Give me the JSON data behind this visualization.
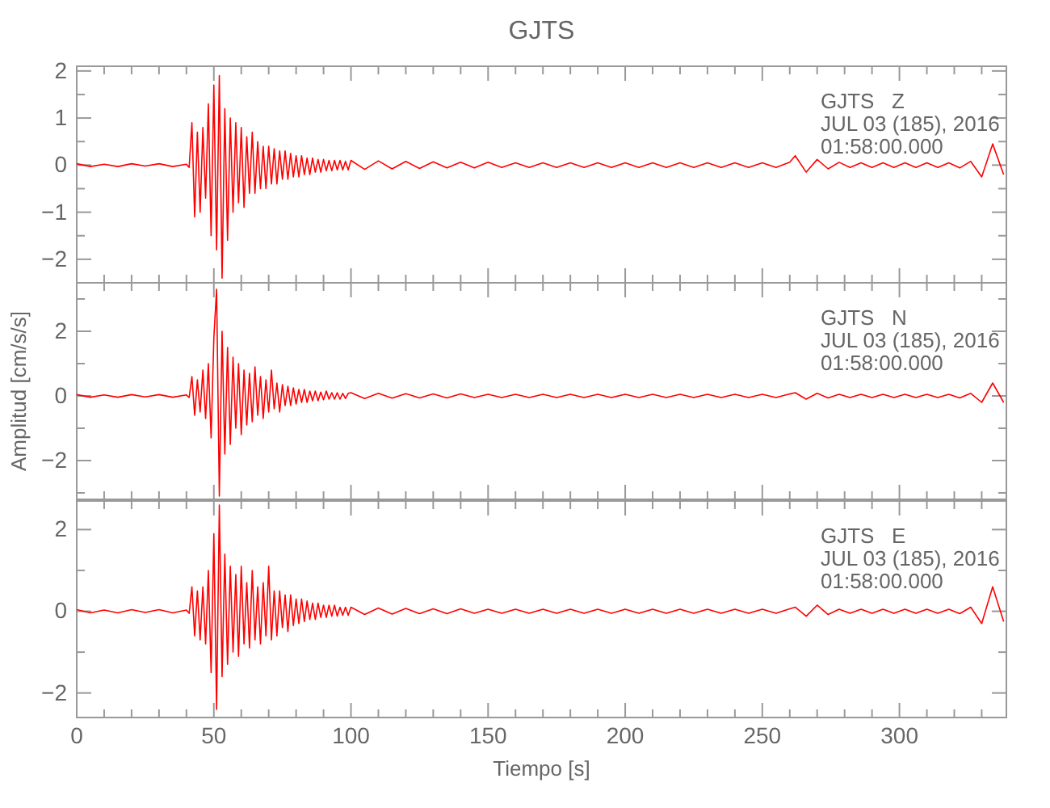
{
  "chart_data": [
    {
      "type": "line",
      "title": "GJTS",
      "x": [
        0,
        5,
        10,
        15,
        20,
        25,
        30,
        35,
        40,
        41,
        42,
        43,
        44,
        45,
        46,
        47,
        48,
        49,
        50,
        51,
        52,
        53,
        54,
        55,
        56,
        57,
        58,
        59,
        60,
        61,
        62,
        63,
        64,
        65,
        66,
        67,
        68,
        69,
        70,
        71,
        72,
        73,
        74,
        75,
        76,
        77,
        78,
        79,
        80,
        81,
        82,
        83,
        84,
        85,
        86,
        87,
        88,
        89,
        90,
        91,
        92,
        93,
        94,
        95,
        96,
        97,
        98,
        99,
        100,
        105,
        110,
        115,
        120,
        125,
        130,
        135,
        140,
        145,
        150,
        155,
        160,
        165,
        170,
        175,
        180,
        185,
        190,
        195,
        200,
        205,
        210,
        215,
        220,
        225,
        230,
        235,
        240,
        245,
        250,
        255,
        260,
        262,
        266,
        270,
        274,
        278,
        282,
        286,
        290,
        294,
        298,
        302,
        306,
        310,
        314,
        318,
        322,
        326,
        330,
        334,
        338
      ],
      "series": [
        {
          "color": "#ff0000",
          "values": [
            0.03,
            -0.03,
            0.02,
            -0.03,
            0.03,
            -0.02,
            0.03,
            -0.03,
            0.02,
            -0.05,
            0.9,
            -1.1,
            0.7,
            -1.0,
            0.8,
            -0.7,
            1.3,
            -1.5,
            1.7,
            -1.8,
            1.9,
            -2.4,
            1.2,
            -1.6,
            1.0,
            -1.0,
            0.9,
            -0.8,
            0.8,
            -0.9,
            0.6,
            -0.6,
            0.7,
            -0.6,
            0.5,
            -0.5,
            0.4,
            -0.5,
            0.4,
            -0.4,
            0.35,
            -0.4,
            0.3,
            -0.3,
            0.3,
            -0.3,
            0.25,
            -0.25,
            0.2,
            -0.25,
            0.2,
            -0.2,
            0.15,
            -0.2,
            0.15,
            -0.15,
            0.12,
            -0.15,
            0.12,
            -0.12,
            0.1,
            -0.12,
            0.1,
            -0.1,
            0.1,
            -0.1,
            0.08,
            -0.1,
            0.1,
            -0.09,
            0.09,
            -0.08,
            0.08,
            -0.07,
            0.07,
            -0.06,
            0.06,
            -0.06,
            0.06,
            -0.05,
            0.05,
            -0.05,
            0.05,
            -0.05,
            0.05,
            -0.05,
            0.05,
            -0.05,
            0.05,
            -0.05,
            0.05,
            -0.05,
            0.05,
            -0.05,
            0.05,
            -0.05,
            0.05,
            -0.05,
            0.05,
            -0.05,
            0.06,
            0.2,
            -0.15,
            0.12,
            -0.08,
            0.06,
            -0.05,
            0.05,
            -0.05,
            0.05,
            -0.05,
            0.05,
            -0.05,
            0.05,
            -0.05,
            0.05,
            -0.06,
            0.08,
            -0.25,
            0.45,
            -0.2
          ]
        }
      ],
      "xlim": [
        0,
        339
      ],
      "xticks": [
        0,
        {
          "value": 10,
          "label": null
        },
        {
          "value": 20,
          "label": null
        },
        {
          "value": 30,
          "label": null
        },
        {
          "value": 40,
          "label": null
        },
        50,
        {
          "value": 60,
          "label": null
        },
        {
          "value": 70,
          "label": null
        },
        {
          "value": 80,
          "label": null
        },
        {
          "value": 90,
          "label": null
        },
        100,
        {
          "value": 110,
          "label": null
        },
        {
          "value": 120,
          "label": null
        },
        {
          "value": 130,
          "label": null
        },
        {
          "value": 140,
          "label": null
        },
        150,
        {
          "value": 160,
          "label": null
        },
        {
          "value": 170,
          "label": null
        },
        {
          "value": 180,
          "label": null
        },
        {
          "value": 190,
          "label": null
        },
        200,
        {
          "value": 210,
          "label": null
        },
        {
          "value": 220,
          "label": null
        },
        {
          "value": 230,
          "label": null
        },
        {
          "value": 240,
          "label": null
        },
        250,
        {
          "value": 260,
          "label": null
        },
        {
          "value": 270,
          "label": null
        },
        {
          "value": 280,
          "label": null
        },
        {
          "value": 290,
          "label": null
        },
        300,
        {
          "value": 310,
          "label": null
        },
        {
          "value": 320,
          "label": null
        },
        {
          "value": 330,
          "label": null
        }
      ],
      "ylim": [
        -2.5,
        2.1
      ],
      "yticks": [
        -2,
        {
          "value": -1.5,
          "label": null
        },
        -1,
        {
          "value": -0.5,
          "label": null
        },
        0,
        {
          "value": 0.5,
          "label": null
        },
        1,
        {
          "value": 1.5,
          "label": null
        },
        2
      ],
      "tick_labels": "y",
      "annotations": [
        "GJTS   Z",
        "JUL 03 (185), 2016",
        "01:58:00.000"
      ]
    },
    {
      "type": "line",
      "ylabel": "Amplitud [cm/s/s]",
      "x": [
        0,
        5,
        10,
        15,
        20,
        25,
        30,
        35,
        40,
        41,
        42,
        43,
        44,
        45,
        46,
        47,
        48,
        49,
        50,
        51,
        52,
        53,
        54,
        55,
        56,
        57,
        58,
        59,
        60,
        61,
        62,
        63,
        64,
        65,
        66,
        67,
        68,
        69,
        70,
        71,
        72,
        73,
        74,
        75,
        76,
        77,
        78,
        79,
        80,
        81,
        82,
        83,
        84,
        85,
        86,
        87,
        88,
        89,
        90,
        91,
        92,
        93,
        94,
        95,
        96,
        97,
        98,
        99,
        100,
        105,
        110,
        115,
        120,
        125,
        130,
        135,
        140,
        145,
        150,
        155,
        160,
        165,
        170,
        175,
        180,
        185,
        190,
        195,
        200,
        205,
        210,
        215,
        220,
        225,
        230,
        235,
        240,
        245,
        250,
        255,
        260,
        262,
        266,
        270,
        274,
        278,
        282,
        286,
        290,
        294,
        298,
        302,
        306,
        310,
        314,
        318,
        322,
        326,
        330,
        334,
        338
      ],
      "series": [
        {
          "color": "#ff0000",
          "values": [
            0.04,
            -0.04,
            0.03,
            -0.04,
            0.04,
            -0.03,
            0.04,
            -0.04,
            0.03,
            -0.05,
            0.6,
            -0.6,
            0.5,
            -0.5,
            0.8,
            -0.7,
            1.0,
            -1.3,
            1.8,
            3.3,
            -3.1,
            2.0,
            -1.8,
            1.5,
            -1.5,
            1.2,
            -1.0,
            1.0,
            -1.2,
            0.8,
            -0.9,
            0.7,
            -0.8,
            0.9,
            -0.6,
            0.6,
            -0.7,
            0.5,
            -0.5,
            0.8,
            -0.4,
            0.4,
            -0.5,
            0.35,
            -0.3,
            0.3,
            -0.3,
            0.25,
            -0.25,
            0.2,
            -0.2,
            0.2,
            -0.2,
            0.15,
            -0.15,
            0.15,
            -0.15,
            0.12,
            -0.12,
            0.15,
            -0.1,
            0.1,
            -0.1,
            0.1,
            -0.1,
            0.08,
            -0.08,
            0.08,
            0.1,
            -0.08,
            0.08,
            -0.07,
            0.07,
            -0.06,
            0.06,
            -0.06,
            0.06,
            -0.05,
            0.05,
            -0.05,
            0.05,
            -0.05,
            0.05,
            -0.05,
            0.05,
            -0.05,
            0.05,
            -0.05,
            0.05,
            -0.05,
            0.05,
            -0.05,
            0.05,
            -0.05,
            0.05,
            -0.05,
            0.05,
            -0.05,
            0.05,
            -0.05,
            0.06,
            0.1,
            -0.1,
            0.08,
            -0.06,
            0.05,
            -0.05,
            0.05,
            -0.05,
            0.05,
            -0.05,
            0.05,
            -0.05,
            0.05,
            -0.05,
            0.05,
            -0.06,
            0.08,
            -0.2,
            0.4,
            -0.2
          ]
        }
      ],
      "xlim": [
        0,
        339
      ],
      "xticks": [
        0,
        {
          "value": 10,
          "label": null
        },
        {
          "value": 20,
          "label": null
        },
        {
          "value": 30,
          "label": null
        },
        {
          "value": 40,
          "label": null
        },
        50,
        {
          "value": 60,
          "label": null
        },
        {
          "value": 70,
          "label": null
        },
        {
          "value": 80,
          "label": null
        },
        {
          "value": 90,
          "label": null
        },
        100,
        {
          "value": 110,
          "label": null
        },
        {
          "value": 120,
          "label": null
        },
        {
          "value": 130,
          "label": null
        },
        {
          "value": 140,
          "label": null
        },
        150,
        {
          "value": 160,
          "label": null
        },
        {
          "value": 170,
          "label": null
        },
        {
          "value": 180,
          "label": null
        },
        {
          "value": 190,
          "label": null
        },
        200,
        {
          "value": 210,
          "label": null
        },
        {
          "value": 220,
          "label": null
        },
        {
          "value": 230,
          "label": null
        },
        {
          "value": 240,
          "label": null
        },
        250,
        {
          "value": 260,
          "label": null
        },
        {
          "value": 270,
          "label": null
        },
        {
          "value": 280,
          "label": null
        },
        {
          "value": 290,
          "label": null
        },
        300,
        {
          "value": 310,
          "label": null
        },
        {
          "value": 320,
          "label": null
        },
        {
          "value": 330,
          "label": null
        }
      ],
      "ylim": [
        -3.2,
        3.5
      ],
      "yticks": [
        {
          "value": -3,
          "label": null
        },
        -2,
        {
          "value": -1,
          "label": null
        },
        0,
        {
          "value": 1,
          "label": null
        },
        2,
        {
          "value": 3,
          "label": null
        }
      ],
      "tick_labels": "y",
      "annotations": [
        "GJTS   N",
        "JUL 03 (185), 2016",
        "01:58:00.000"
      ]
    },
    {
      "type": "line",
      "xlabel": "Tiempo [s]",
      "x": [
        0,
        5,
        10,
        15,
        20,
        25,
        30,
        35,
        40,
        41,
        42,
        43,
        44,
        45,
        46,
        47,
        48,
        49,
        50,
        51,
        52,
        53,
        54,
        55,
        56,
        57,
        58,
        59,
        60,
        61,
        62,
        63,
        64,
        65,
        66,
        67,
        68,
        69,
        70,
        71,
        72,
        73,
        74,
        75,
        76,
        77,
        78,
        79,
        80,
        81,
        82,
        83,
        84,
        85,
        86,
        87,
        88,
        89,
        90,
        91,
        92,
        93,
        94,
        95,
        96,
        97,
        98,
        99,
        100,
        105,
        110,
        115,
        120,
        125,
        130,
        135,
        140,
        145,
        150,
        155,
        160,
        165,
        170,
        175,
        180,
        185,
        190,
        195,
        200,
        205,
        210,
        215,
        220,
        225,
        230,
        235,
        240,
        245,
        250,
        255,
        260,
        262,
        266,
        270,
        274,
        278,
        282,
        286,
        290,
        294,
        298,
        302,
        306,
        310,
        314,
        318,
        322,
        326,
        330,
        334,
        338
      ],
      "series": [
        {
          "color": "#ff0000",
          "values": [
            0.04,
            -0.04,
            0.03,
            -0.04,
            0.04,
            -0.03,
            0.04,
            -0.04,
            0.03,
            -0.05,
            0.6,
            -0.6,
            0.5,
            -0.7,
            0.6,
            -0.8,
            1.0,
            -1.5,
            1.9,
            -2.4,
            2.6,
            -1.6,
            1.4,
            -1.3,
            1.1,
            -1.0,
            0.9,
            -1.1,
            1.1,
            -0.8,
            0.7,
            -0.9,
            1.0,
            -0.7,
            0.6,
            -0.8,
            0.7,
            -0.6,
            1.1,
            -0.7,
            0.5,
            -0.6,
            0.5,
            -0.4,
            0.4,
            -0.5,
            0.4,
            -0.35,
            0.3,
            -0.3,
            0.3,
            -0.25,
            0.25,
            -0.2,
            0.2,
            -0.2,
            0.2,
            -0.15,
            0.15,
            -0.15,
            0.15,
            -0.12,
            0.15,
            -0.12,
            0.1,
            -0.1,
            0.1,
            -0.1,
            0.1,
            -0.08,
            0.08,
            -0.07,
            0.07,
            -0.06,
            0.06,
            -0.06,
            0.06,
            -0.05,
            0.05,
            -0.05,
            0.05,
            -0.05,
            0.05,
            -0.05,
            0.05,
            -0.05,
            0.05,
            -0.05,
            0.05,
            -0.05,
            0.05,
            -0.05,
            0.05,
            -0.05,
            0.05,
            -0.05,
            0.05,
            -0.05,
            0.05,
            -0.05,
            0.06,
            0.1,
            -0.12,
            0.15,
            -0.08,
            0.05,
            -0.05,
            0.05,
            -0.05,
            0.05,
            -0.05,
            0.05,
            -0.05,
            0.05,
            -0.05,
            0.05,
            -0.06,
            0.1,
            -0.3,
            0.6,
            -0.25
          ]
        }
      ],
      "xlim": [
        0,
        339
      ],
      "xticks": [
        0,
        {
          "value": 10,
          "label": null
        },
        {
          "value": 20,
          "label": null
        },
        {
          "value": 30,
          "label": null
        },
        {
          "value": 40,
          "label": null
        },
        50,
        {
          "value": 60,
          "label": null
        },
        {
          "value": 70,
          "label": null
        },
        {
          "value": 80,
          "label": null
        },
        {
          "value": 90,
          "label": null
        },
        100,
        {
          "value": 110,
          "label": null
        },
        {
          "value": 120,
          "label": null
        },
        {
          "value": 130,
          "label": null
        },
        {
          "value": 140,
          "label": null
        },
        150,
        {
          "value": 160,
          "label": null
        },
        {
          "value": 170,
          "label": null
        },
        {
          "value": 180,
          "label": null
        },
        {
          "value": 190,
          "label": null
        },
        200,
        {
          "value": 210,
          "label": null
        },
        {
          "value": 220,
          "label": null
        },
        {
          "value": 230,
          "label": null
        },
        {
          "value": 240,
          "label": null
        },
        250,
        {
          "value": 260,
          "label": null
        },
        {
          "value": 270,
          "label": null
        },
        {
          "value": 280,
          "label": null
        },
        {
          "value": 290,
          "label": null
        },
        300,
        {
          "value": 310,
          "label": null
        },
        {
          "value": 320,
          "label": null
        },
        {
          "value": 330,
          "label": null
        }
      ],
      "ylim": [
        -2.6,
        2.7
      ],
      "yticks": [
        -2,
        {
          "value": -1,
          "label": null
        },
        0,
        {
          "value": 1,
          "label": null
        },
        2
      ],
      "annotations": [
        "GJTS   E",
        "JUL 03 (185), 2016",
        "01:58:00.000"
      ]
    }
  ]
}
